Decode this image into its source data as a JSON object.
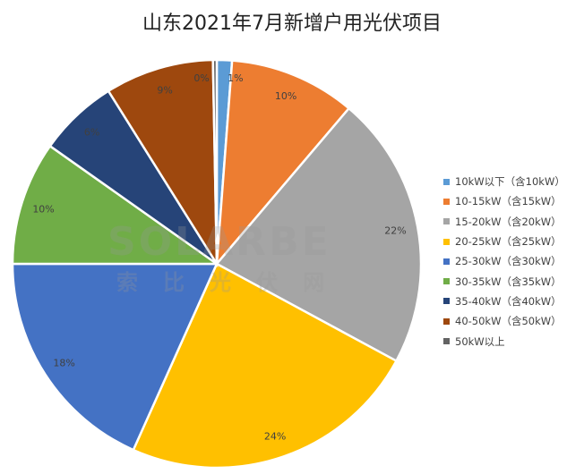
{
  "chart_data": {
    "type": "pie",
    "title": "山东2021年7月新增户用光伏项目",
    "categories": [
      "10kW以下（含10kW）",
      "10-15kW（含15kW）",
      "15-20kW（含20kW）",
      "20-25kW（含25kW）",
      "25-30kW（含30kW）",
      "30-35kW（含35kW）",
      "35-40kW（含40kW）",
      "40-50kW（含50kW）",
      "50kW以上"
    ],
    "values": [
      1.2,
      10.0,
      21.7,
      23.8,
      18.3,
      9.8,
      6.3,
      8.6,
      0.3
    ],
    "data_labels": [
      "1%",
      "10%",
      "22%",
      "24%",
      "18%",
      "10%",
      "6%",
      "9%",
      "0%"
    ],
    "colors": [
      "#5B9BD5",
      "#ED7D31",
      "#A5A5A5",
      "#FFC000",
      "#4472C4",
      "#70AD47",
      "#264478",
      "#9E480E",
      "#636363"
    ],
    "legend_position": "right",
    "start_angle": "top, clockwise"
  },
  "watermark": {
    "line1": "SOLARBE",
    "line2": "索比光伏网"
  }
}
